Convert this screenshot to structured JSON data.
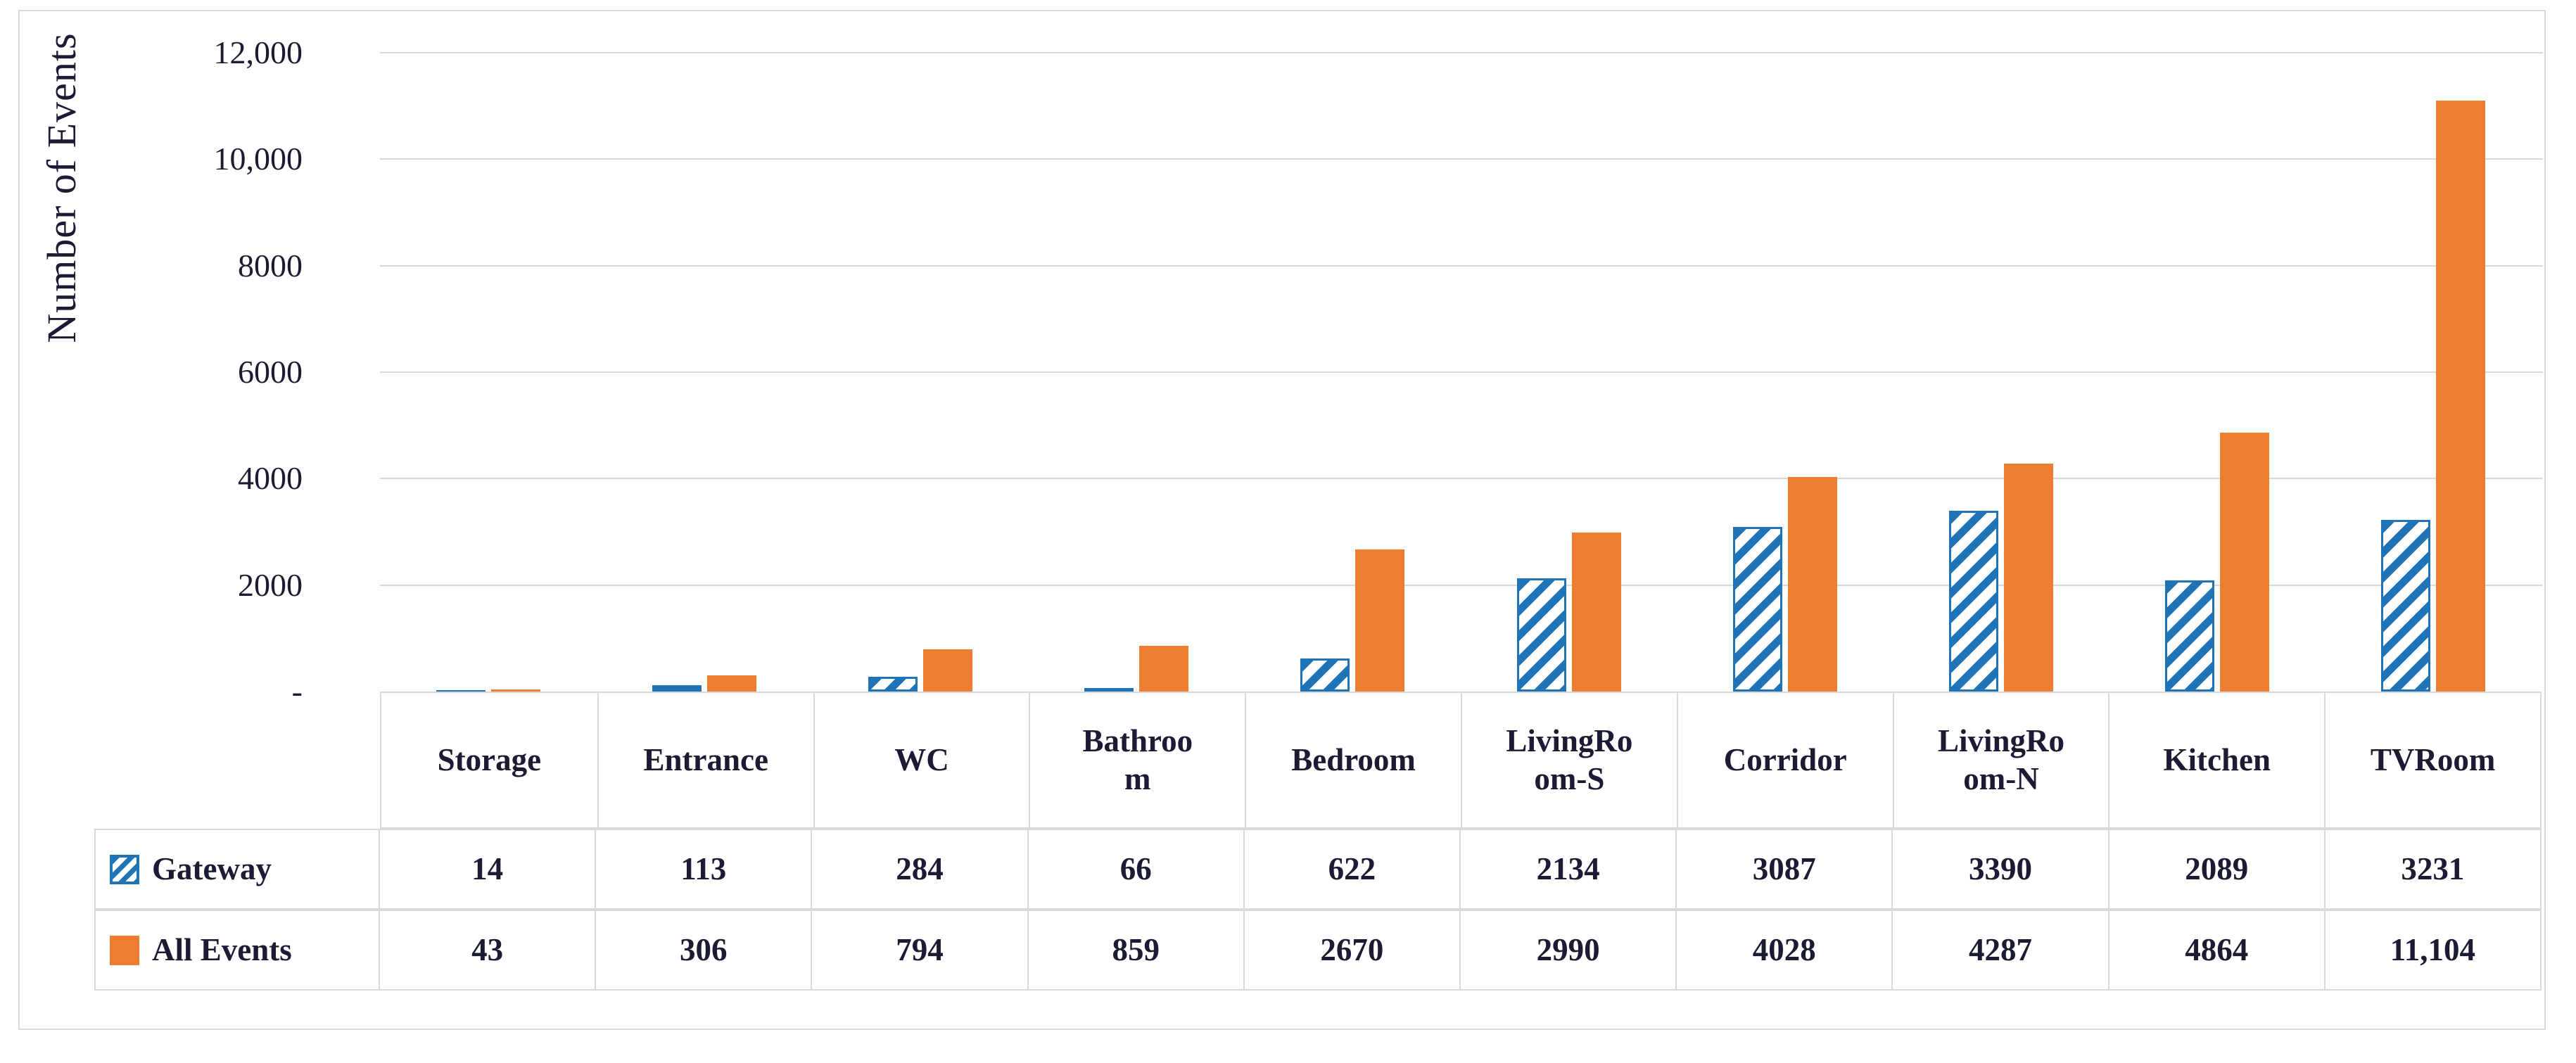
{
  "chart_data": {
    "type": "bar",
    "title": "",
    "xlabel": "",
    "ylabel": "Number of Events",
    "ylim": [
      0,
      12000
    ],
    "grid": true,
    "legend_position": "data-table-left",
    "categories": [
      "Storage",
      "Entrance",
      "WC",
      "Bathroom",
      "Bedroom",
      "LivingRoom-S",
      "Corridor",
      "LivingRoom-N",
      "Kitchen",
      "TVRoom"
    ],
    "categories_display": [
      "Storage",
      "Entrance",
      "WC",
      "Bathroo\nm",
      "Bedroom",
      "LivingRo\nom-S",
      "Corridor",
      "LivingRo\nom-N",
      "Kitchen",
      "TVRoom"
    ],
    "series": [
      {
        "name": "Gateway",
        "style": "hatched-blue",
        "values": [
          14,
          113,
          284,
          66,
          622,
          2134,
          3087,
          3390,
          2089,
          3231
        ],
        "values_display": [
          "14",
          "113",
          "284",
          "66",
          "622",
          "2134",
          "3087",
          "3390",
          "2089",
          "3231"
        ]
      },
      {
        "name": "All Events",
        "style": "solid-orange",
        "values": [
          43,
          306,
          794,
          859,
          2670,
          2990,
          4028,
          4287,
          4864,
          11104
        ],
        "values_display": [
          "43",
          "306",
          "794",
          "859",
          "2670",
          "2990",
          "4028",
          "4287",
          "4864",
          "11,104"
        ]
      }
    ],
    "yticks": [
      {
        "value": 12000,
        "label": "12,000"
      },
      {
        "value": 10000,
        "label": "10,000"
      },
      {
        "value": 8000,
        "label": "8000"
      },
      {
        "value": 6000,
        "label": "6000"
      },
      {
        "value": 4000,
        "label": "4000"
      },
      {
        "value": 2000,
        "label": "2000"
      },
      {
        "value": 0,
        "label": "-"
      }
    ]
  },
  "colors": {
    "gateway_blue": "#1F74B8",
    "all_events_orange": "#ED7D31",
    "gridline_gray": "#D9D9D9",
    "text_dark": "#1B1B33",
    "background": "#FFFFFF"
  }
}
